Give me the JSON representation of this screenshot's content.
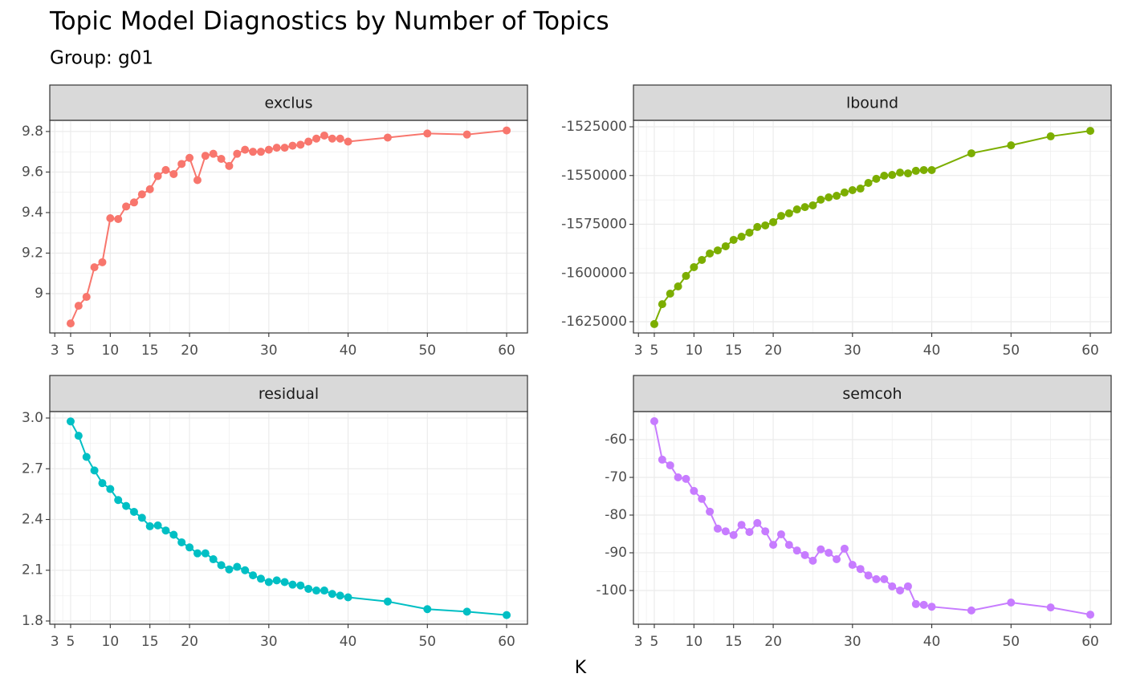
{
  "title": "Topic Model Diagnostics by Number of Topics",
  "subtitle": "Group: g01",
  "x_label": "K",
  "chart_data": [
    {
      "type": "line",
      "title": "exclus",
      "color": "#F8766D",
      "grid": true,
      "x": [
        5,
        6,
        7,
        8,
        9,
        10,
        11,
        12,
        13,
        14,
        15,
        16,
        17,
        18,
        19,
        20,
        21,
        22,
        23,
        24,
        25,
        26,
        27,
        28,
        29,
        30,
        31,
        32,
        33,
        34,
        35,
        36,
        37,
        38,
        39,
        40,
        45,
        50,
        55,
        60
      ],
      "values": [
        8.853,
        8.94,
        8.984,
        9.13,
        9.155,
        9.372,
        9.368,
        9.43,
        9.45,
        9.49,
        9.515,
        9.58,
        9.61,
        9.59,
        9.64,
        9.67,
        9.56,
        9.68,
        9.69,
        9.665,
        9.63,
        9.69,
        9.71,
        9.7,
        9.7,
        9.71,
        9.72,
        9.72,
        9.73,
        9.735,
        9.75,
        9.765,
        9.78,
        9.765,
        9.765,
        9.75,
        9.77,
        9.79,
        9.785,
        9.805
      ],
      "xlim": [
        2.37,
        62.63
      ],
      "ylim": [
        8.806,
        9.855
      ],
      "xticks": [
        3,
        5,
        10,
        15,
        20,
        30,
        40,
        50,
        60
      ],
      "yticks": [
        9.0,
        9.2,
        9.4,
        9.6,
        9.8
      ]
    },
    {
      "type": "line",
      "title": "lbound",
      "color": "#7CAE00",
      "grid": true,
      "x": [
        5,
        6,
        7,
        8,
        9,
        10,
        11,
        12,
        13,
        14,
        15,
        16,
        17,
        18,
        19,
        20,
        21,
        22,
        23,
        24,
        25,
        26,
        27,
        28,
        29,
        30,
        31,
        32,
        33,
        34,
        35,
        36,
        37,
        38,
        39,
        40,
        45,
        50,
        55,
        60
      ],
      "values": [
        -1626200,
        -1616000,
        -1610600,
        -1606900,
        -1601500,
        -1597000,
        -1593300,
        -1590000,
        -1588400,
        -1586300,
        -1583000,
        -1581400,
        -1579300,
        -1576400,
        -1575600,
        -1573900,
        -1570700,
        -1569400,
        -1567400,
        -1566200,
        -1565300,
        -1562400,
        -1561200,
        -1560400,
        -1558700,
        -1557500,
        -1556700,
        -1553800,
        -1551700,
        -1550100,
        -1549700,
        -1548500,
        -1548900,
        -1547600,
        -1547200,
        -1547200,
        -1538600,
        -1534500,
        -1529900,
        -1527100
      ],
      "xlim": [
        2.37,
        62.63
      ],
      "ylim": [
        -1630760,
        -1521700
      ],
      "xticks": [
        3,
        5,
        10,
        15,
        20,
        30,
        40,
        50,
        60
      ],
      "yticks": [
        -1625000,
        -1600000,
        -1575000,
        -1550000,
        -1525000
      ]
    },
    {
      "type": "line",
      "title": "residual",
      "color": "#00BFC4",
      "grid": true,
      "x": [
        5,
        6,
        7,
        8,
        9,
        10,
        11,
        12,
        13,
        14,
        15,
        16,
        17,
        18,
        19,
        20,
        21,
        22,
        23,
        24,
        25,
        26,
        27,
        28,
        29,
        30,
        31,
        32,
        33,
        34,
        35,
        36,
        37,
        38,
        39,
        40,
        45,
        50,
        55,
        60
      ],
      "values": [
        2.98,
        2.895,
        2.77,
        2.69,
        2.615,
        2.58,
        2.515,
        2.48,
        2.445,
        2.41,
        2.36,
        2.365,
        2.335,
        2.31,
        2.265,
        2.235,
        2.2,
        2.2,
        2.165,
        2.13,
        2.105,
        2.12,
        2.1,
        2.07,
        2.05,
        2.03,
        2.04,
        2.03,
        2.015,
        2.01,
        1.99,
        1.98,
        1.98,
        1.96,
        1.95,
        1.94,
        1.915,
        1.87,
        1.855,
        1.835
      ],
      "xlim": [
        2.37,
        62.63
      ],
      "ylim": [
        1.781,
        3.038
      ],
      "xticks": [
        3,
        5,
        10,
        15,
        20,
        30,
        40,
        50,
        60
      ],
      "yticks": [
        1.8,
        2.1,
        2.4,
        2.7,
        {
          "value": 3,
          "label": "3.0"
        }
      ]
    },
    {
      "type": "line",
      "title": "semcoh",
      "color": "#C77CFF",
      "grid": true,
      "x": [
        5,
        6,
        7,
        8,
        9,
        10,
        11,
        12,
        13,
        14,
        15,
        16,
        17,
        18,
        19,
        20,
        21,
        22,
        23,
        24,
        25,
        26,
        27,
        28,
        29,
        30,
        31,
        32,
        33,
        34,
        35,
        36,
        37,
        38,
        39,
        40,
        45,
        50,
        55,
        60
      ],
      "values": [
        -55.1,
        -65.3,
        -66.8,
        -70.0,
        -70.4,
        -73.6,
        -75.7,
        -79.1,
        -83.6,
        -84.3,
        -85.3,
        -82.6,
        -84.5,
        -82.1,
        -84.3,
        -87.9,
        -85.1,
        -87.9,
        -89.4,
        -90.6,
        -92.1,
        -89.1,
        -90.0,
        -91.7,
        -88.9,
        -93.2,
        -94.3,
        -96.0,
        -97.0,
        -97.0,
        -98.9,
        -100.0,
        -98.9,
        -103.6,
        -103.8,
        -104.3,
        -105.3,
        -103.2,
        -104.5,
        -106.4
      ],
      "xlim": [
        2.37,
        62.63
      ],
      "ylim": [
        -108.94,
        -52.55
      ],
      "xticks": [
        3,
        5,
        10,
        15,
        20,
        30,
        40,
        50,
        60
      ],
      "yticks": [
        -100,
        -90,
        -80,
        -70,
        -60
      ]
    }
  ]
}
